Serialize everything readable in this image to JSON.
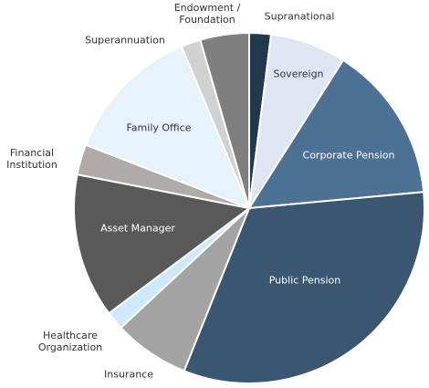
{
  "chart_data": {
    "type": "pie",
    "categories": [
      "Supranational",
      "Sovereign",
      "Corporate Pension",
      "Public Pension",
      "Insurance",
      "Healthcare Organization",
      "Asset Manager",
      "Financial Institution",
      "Family Office",
      "Superannuation",
      "Endowment / Foundation"
    ],
    "values": [
      2,
      7,
      14.5,
      32.5,
      7,
      1.7,
      13.3,
      2.8,
      12.8,
      1.8,
      4.5
    ],
    "colors": [
      "#22384d",
      "#dde6f2",
      "#4d7194",
      "#3a5670",
      "#a3a3a3",
      "#cde9fb",
      "#595959",
      "#b0aaa8",
      "#e6f3fd",
      "#d1d1d1",
      "#7f7f7f"
    ]
  }
}
